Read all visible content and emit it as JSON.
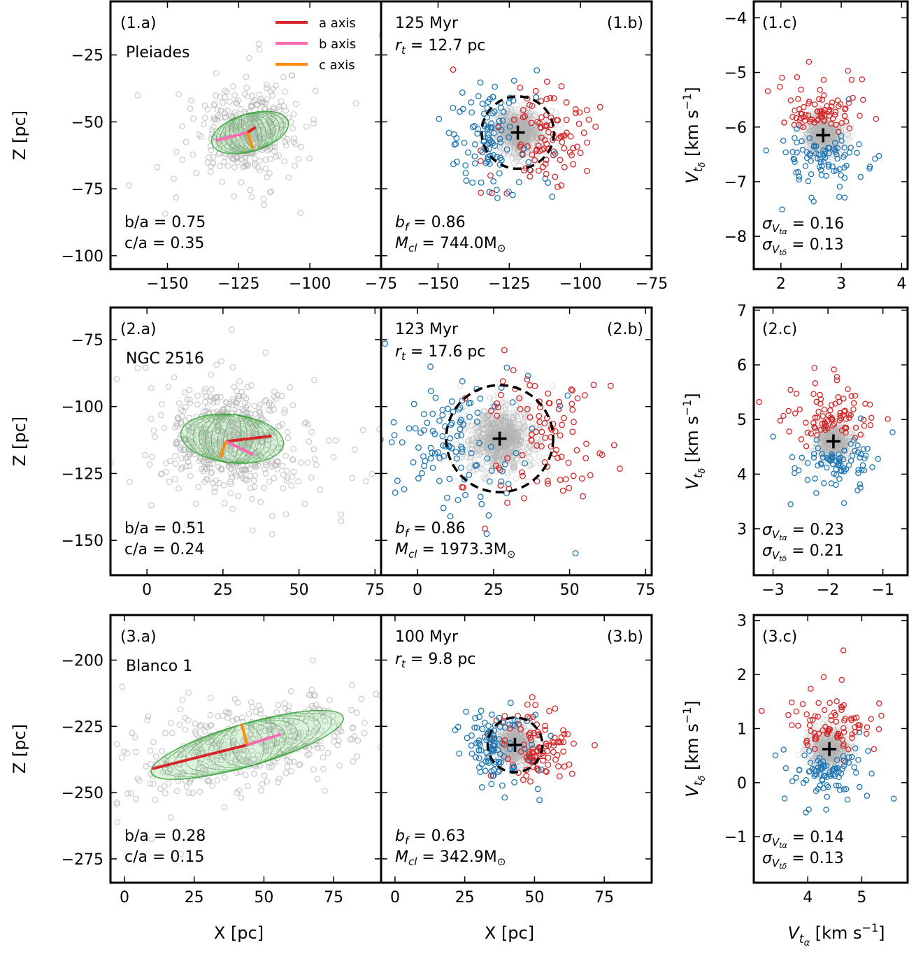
{
  "chart_data": [
    {
      "type": "scatter",
      "panel": "1.a",
      "label": "(1.a)",
      "cluster": "Pleiades",
      "xlim": [
        -170,
        -75
      ],
      "ylim": [
        -105,
        -5
      ],
      "xticks": [
        -150,
        -125,
        -100,
        -75
      ],
      "xtick_labels": [
        "−150",
        "−125",
        "−100",
        "−75"
      ],
      "yticks": [
        -25,
        -50,
        -75,
        -100
      ],
      "ytick_labels": [
        "−25",
        "−50",
        "−75",
        "−100"
      ],
      "xlabel": "",
      "ylabel": "Z [pc]",
      "center": [
        -121,
        -54
      ],
      "spread": [
        7,
        5
      ],
      "n_points": 420,
      "ellipse": {
        "semi_major": 14,
        "semi_minor": 7,
        "angle_deg": 18
      },
      "axes_lines": {
        "a": [
          [
            -122,
            -54
          ],
          [
            -119,
            -52
          ]
        ],
        "b": [
          [
            -122,
            -54
          ],
          [
            -133,
            -57
          ]
        ],
        "c": [
          [
            -122,
            -54
          ],
          [
            -120,
            -60
          ]
        ]
      },
      "legend": [
        {
          "name": "a axis",
          "color": "#d62728"
        },
        {
          "name": "b axis",
          "color": "#ff69b4"
        },
        {
          "name": "c axis",
          "color": "#ff8c00"
        }
      ],
      "annotations": [
        "b/a = 0.75",
        "c/a = 0.35"
      ]
    },
    {
      "type": "scatter",
      "panel": "1.b",
      "label": "(1.b)",
      "xlim": [
        -170,
        -75
      ],
      "ylim": [
        -105,
        -5
      ],
      "xticks": [
        -150,
        -125,
        -100,
        -75
      ],
      "xtick_labels": [
        "−150",
        "−125",
        "−100",
        "−75"
      ],
      "yticks": [
        -25,
        -50,
        -75,
        -100
      ],
      "xlabel": "",
      "age": "125 Myr",
      "rt_label": "r",
      "rt_sub": "t",
      "rt_value": " = 12.7 pc",
      "center": [
        -122,
        -54
      ],
      "circle_radius": 12.7,
      "annotations": [
        {
          "sym": "b",
          "sub": "f",
          "rest": " = 0.86"
        },
        {
          "sym": "M",
          "sub": "cl",
          "rest": " = 744.0M",
          "sun": "⊙"
        }
      ]
    },
    {
      "type": "scatter",
      "panel": "1.c",
      "label": "(1.c)",
      "xlim": [
        1.55,
        4.1
      ],
      "ylim": [
        -8.6,
        -3.7
      ],
      "xticks": [
        2,
        3,
        4
      ],
      "xtick_labels": [
        "2",
        "3",
        "4"
      ],
      "yticks": [
        -4,
        -5,
        -6,
        -7,
        -8
      ],
      "ytick_labels": [
        "−4",
        "−5",
        "−6",
        "−7",
        "−8"
      ],
      "xlabel": "",
      "center": [
        2.7,
        -6.15
      ],
      "annotations": [
        {
          "sub": "α",
          "rest": " = 0.16"
        },
        {
          "sub": "δ",
          "rest": " = 0.13"
        }
      ]
    },
    {
      "type": "scatter",
      "panel": "2.a",
      "label": "(2.a)",
      "cluster": "NGC 2516",
      "xlim": [
        -12,
        77
      ],
      "ylim": [
        -163,
        -63
      ],
      "xticks": [
        0,
        25,
        50,
        75
      ],
      "xtick_labels": [
        "0",
        "25",
        "50",
        "75"
      ],
      "yticks": [
        -75,
        -100,
        -125,
        -150
      ],
      "ytick_labels": [
        "−75",
        "−100",
        "−125",
        "−150"
      ],
      "xlabel": "",
      "ylabel": "Z [pc]",
      "center": [
        28,
        -112
      ],
      "spread": [
        10,
        8
      ],
      "n_points": 650,
      "ellipse": {
        "semi_major": 17,
        "semi_minor": 9,
        "angle_deg": -8
      },
      "axes_lines": {
        "a": [
          [
            26,
            -113
          ],
          [
            41,
            -111
          ]
        ],
        "b": [
          [
            26,
            -113
          ],
          [
            35,
            -118
          ]
        ],
        "c": [
          [
            26,
            -113
          ],
          [
            24,
            -119
          ]
        ]
      },
      "annotations": [
        "b/a = 0.51",
        "c/a = 0.24"
      ]
    },
    {
      "type": "scatter",
      "panel": "2.b",
      "label": "(2.b)",
      "xlim": [
        -12,
        77
      ],
      "ylim": [
        -163,
        -63
      ],
      "xticks": [
        0,
        25,
        50,
        75
      ],
      "xtick_labels": [
        "0",
        "25",
        "50",
        "75"
      ],
      "yticks": [
        -75,
        -100,
        -125,
        -150
      ],
      "xlabel": "",
      "age": "123 Myr",
      "rt_label": "r",
      "rt_sub": "t",
      "rt_value": " = 17.6 pc",
      "center": [
        27,
        -112
      ],
      "circle_radius": 17.6,
      "annotations": [
        {
          "sym": "b",
          "sub": "f",
          "rest": " = 0.86"
        },
        {
          "sym": "M",
          "sub": "cl",
          "rest": " = 1973.3M",
          "sun": "⊙"
        }
      ]
    },
    {
      "type": "scatter",
      "panel": "2.c",
      "label": "(2.c)",
      "xlim": [
        -3.35,
        -0.55
      ],
      "ylim": [
        2.15,
        7.05
      ],
      "xticks": [
        -3,
        -2,
        -1
      ],
      "xtick_labels": [
        "−3",
        "−2",
        "−1"
      ],
      "yticks": [
        3,
        4,
        5,
        6,
        7
      ],
      "ytick_labels": [
        "3",
        "4",
        "5",
        "6",
        "7"
      ],
      "xlabel": "",
      "center": [
        -1.9,
        4.6
      ],
      "annotations": [
        {
          "sub": "α",
          "rest": " = 0.23"
        },
        {
          "sub": "δ",
          "rest": " = 0.21"
        }
      ]
    },
    {
      "type": "scatter",
      "panel": "3.a",
      "label": "(3.a)",
      "cluster": "Blanco 1",
      "xlim": [
        -5,
        92
      ],
      "ylim": [
        -284,
        -183
      ],
      "xticks": [
        0,
        25,
        50,
        75
      ],
      "xtick_labels": [
        "0",
        "25",
        "50",
        "75"
      ],
      "yticks": [
        -200,
        -225,
        -250,
        -275
      ],
      "ytick_labels": [
        "−200",
        "−225",
        "−250",
        "−275"
      ],
      "xlabel": "X [pc]",
      "ylabel": "Z [pc]",
      "center": [
        44,
        -232
      ],
      "spread": [
        18,
        12
      ],
      "n_points": 460,
      "ellipse": {
        "semi_major": 36,
        "semi_minor": 8,
        "angle_deg": 17
      },
      "axes_lines": {
        "a": [
          [
            44,
            -232
          ],
          [
            10,
            -241
          ]
        ],
        "b": [
          [
            44,
            -232
          ],
          [
            56,
            -228
          ]
        ],
        "c": [
          [
            44,
            -232
          ],
          [
            42,
            -224
          ]
        ]
      },
      "annotations": [
        "b/a = 0.28",
        "c/a = 0.15"
      ]
    },
    {
      "type": "scatter",
      "panel": "3.b",
      "label": "(3.b)",
      "xlim": [
        -5,
        92
      ],
      "ylim": [
        -284,
        -183
      ],
      "xticks": [
        0,
        25,
        50,
        75
      ],
      "xtick_labels": [
        "0",
        "25",
        "50",
        "75"
      ],
      "yticks": [
        -200,
        -225,
        -250,
        -275
      ],
      "xlabel": "X [pc]",
      "age": "100 Myr",
      "rt_label": "r",
      "rt_sub": "t",
      "rt_value": " = 9.8 pc",
      "center": [
        43,
        -232
      ],
      "circle_radius": 9.8,
      "annotations": [
        {
          "sym": "b",
          "sub": "f",
          "rest": " = 0.63"
        },
        {
          "sym": "M",
          "sub": "cl",
          "rest": " = 342.9M",
          "sun": "⊙"
        }
      ]
    },
    {
      "type": "scatter",
      "panel": "3.c",
      "label": "(3.c)",
      "xlim": [
        3.0,
        5.85
      ],
      "ylim": [
        -1.85,
        3.1
      ],
      "xticks": [
        4,
        5
      ],
      "xtick_labels": [
        "4",
        "5"
      ],
      "yticks": [
        -1,
        0,
        1,
        2,
        3
      ],
      "ytick_labels": [
        "−1",
        "0",
        "1",
        "2",
        "3"
      ],
      "xlabel_main": "V",
      "xlabel_sub": "t",
      "xlabel_subsub": "α",
      "xlabel_unit": " [km s",
      "xlabel_exp": "−1",
      "xlabel_close": "]",
      "center": [
        4.4,
        0.62
      ],
      "annotations": [
        {
          "sub": "α",
          "rest": " = 0.14"
        },
        {
          "sub": "δ",
          "rest": " = 0.13"
        }
      ]
    }
  ],
  "vel_ylabel": {
    "main": "V",
    "sub": "t",
    "subsub": "δ",
    "unit": " [km s",
    "exp": "−1",
    "close": "]"
  },
  "sigma_symbol": "σ",
  "sigma_sub_v": "V",
  "sigma_sub_t": "t",
  "colors": {
    "red": "#d62728",
    "blue": "#1f77b4",
    "gray": "#b4b4b4",
    "ellipse": "#3aa33a",
    "pink": "#ff69b4",
    "orange": "#ff8c00"
  }
}
